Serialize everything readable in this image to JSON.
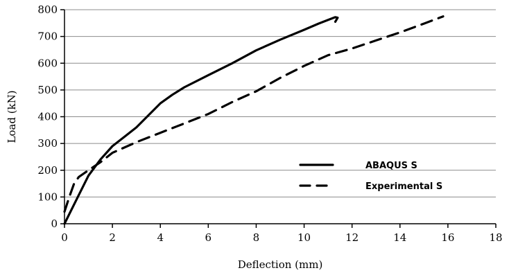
{
  "chart_data": {
    "type": "line",
    "title": "",
    "xlabel": "Deflection (mm)",
    "ylabel": "Load (kN)",
    "xlim": [
      0,
      18
    ],
    "ylim": [
      0,
      800
    ],
    "xticks": [
      0,
      2,
      4,
      6,
      8,
      10,
      12,
      14,
      16,
      18
    ],
    "yticks": [
      0,
      100,
      200,
      300,
      400,
      500,
      600,
      700,
      800
    ],
    "xtick_labels": [
      "0",
      "2",
      "4",
      "6",
      "8",
      "10",
      "12",
      "14",
      "16",
      "18"
    ],
    "ytick_labels": [
      "0",
      "100",
      "200",
      "300",
      "400",
      "500",
      "600",
      "700",
      "800"
    ],
    "grid": "horizontal",
    "legend_position": "lower-right",
    "series": [
      {
        "name": "ABAQUS S",
        "style": "solid",
        "color": "#000000",
        "x": [
          0,
          0.5,
          1.0,
          1.5,
          2.0,
          2.5,
          3.0,
          3.5,
          4.0,
          4.5,
          5.0,
          6.0,
          7.0,
          8.0,
          9.0,
          10.0,
          10.6,
          11.0,
          11.3,
          11.4,
          11.3
        ],
        "y": [
          0,
          90,
          180,
          240,
          290,
          325,
          360,
          405,
          450,
          482,
          510,
          555,
          600,
          648,
          688,
          725,
          748,
          762,
          772,
          770,
          755
        ]
      },
      {
        "name": "Experimental S",
        "style": "dashed",
        "color": "#000000",
        "x": [
          0,
          0.2,
          0.4,
          0.6,
          1.0,
          1.5,
          2.0,
          3.0,
          4.0,
          5.0,
          6.0,
          7.0,
          8.0,
          9.0,
          10.0,
          11.0,
          12.0,
          13.0,
          14.0,
          15.0,
          15.8
        ],
        "y": [
          45,
          100,
          150,
          175,
          200,
          230,
          265,
          305,
          340,
          375,
          410,
          455,
          495,
          545,
          590,
          630,
          655,
          685,
          715,
          748,
          775
        ]
      }
    ]
  }
}
